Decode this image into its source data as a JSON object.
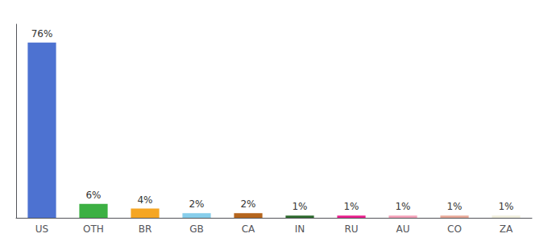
{
  "chart_data": {
    "type": "bar",
    "categories": [
      "US",
      "OTH",
      "BR",
      "GB",
      "CA",
      "IN",
      "RU",
      "AU",
      "CO",
      "ZA"
    ],
    "values": [
      76,
      6,
      4,
      2,
      2,
      1,
      1,
      1,
      1,
      1
    ],
    "value_labels": [
      "76%",
      "6%",
      "4%",
      "2%",
      "2%",
      "1%",
      "1%",
      "1%",
      "1%",
      "1%"
    ],
    "colors": [
      "#4d72d1",
      "#3cb043",
      "#f5a623",
      "#87ceeb",
      "#b5651d",
      "#2d6a2d",
      "#e91e8c",
      "#f4a0b8",
      "#e8a898",
      "#f0eedc"
    ],
    "data_labels": true,
    "ylim": [
      0,
      84
    ],
    "tick_labels": "x",
    "grid": false
  }
}
